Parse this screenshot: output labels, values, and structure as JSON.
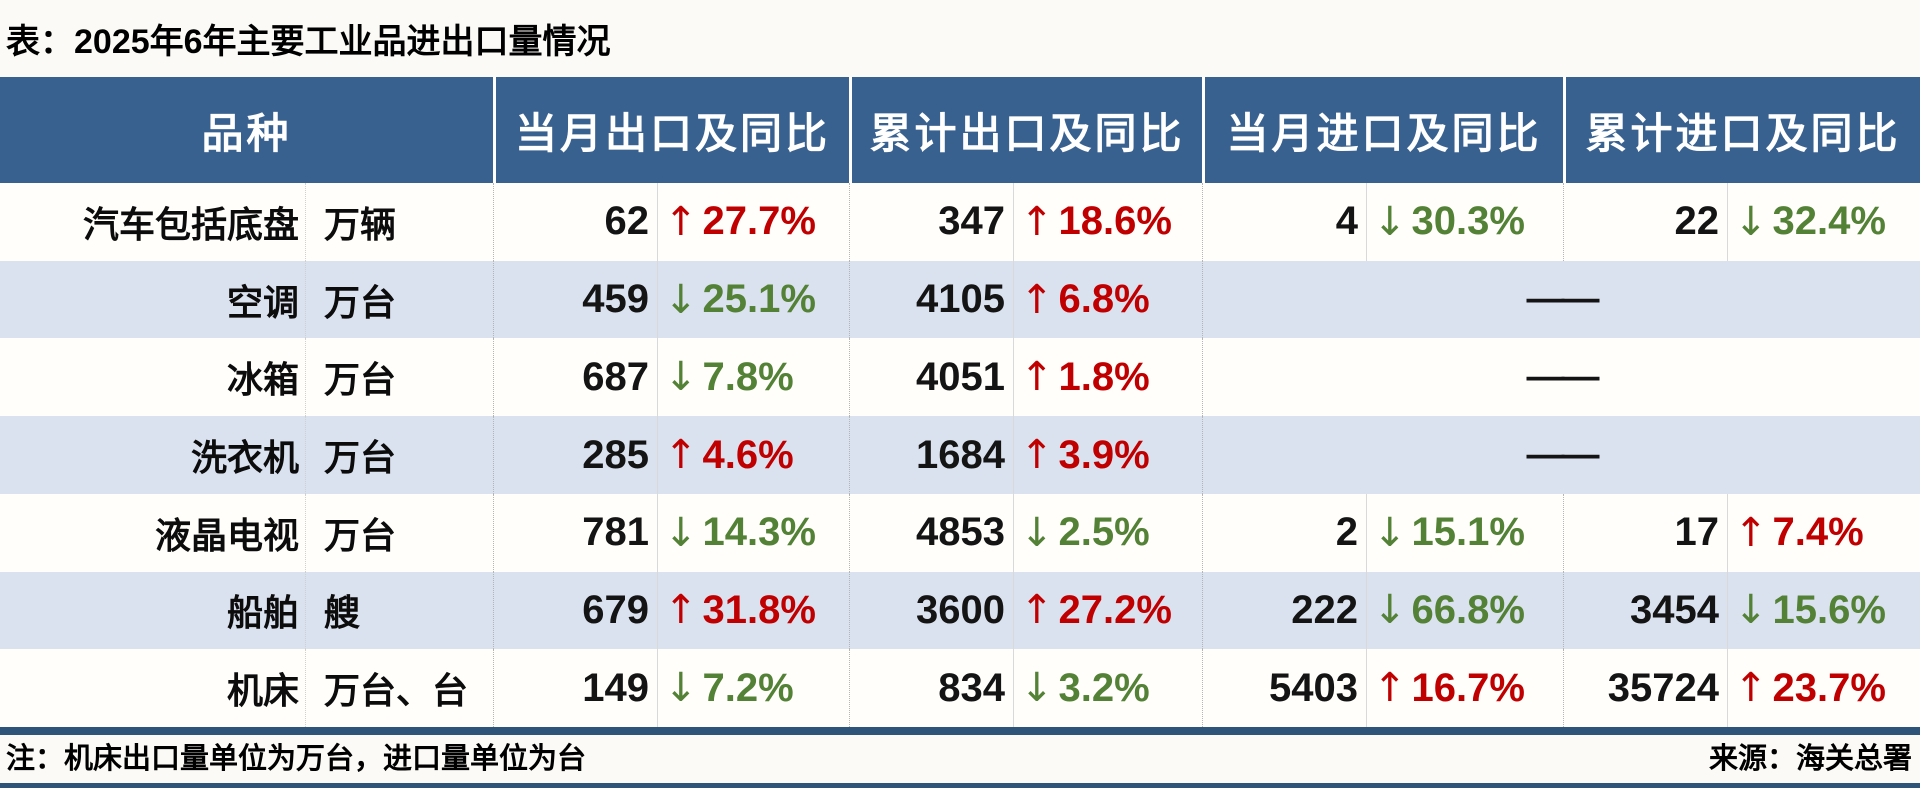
{
  "title": "表：2025年6年主要工业品进出口量情况",
  "colors": {
    "header_bg": "#38618f",
    "stripe_row_bg": "#dbe2ef",
    "up_red": "#c00000",
    "down_green": "#538135",
    "rule_navy": "#2e5579"
  },
  "table": {
    "headers": [
      "品种",
      "当月出口及同比",
      "累计出口及同比",
      "当月进口及同比",
      "累计进口及同比"
    ],
    "empty_placeholder": "——",
    "rows": [
      {
        "name": "汽车包括底盘",
        "unit": "万辆",
        "cells": [
          {
            "value": "62",
            "arrow": "↑",
            "dir": "up",
            "pct": "27.7%"
          },
          {
            "value": "347",
            "arrow": "↑",
            "dir": "up",
            "pct": "18.6%"
          },
          {
            "value": "4",
            "arrow": "↓",
            "dir": "down",
            "pct": "30.3%"
          },
          {
            "value": "22",
            "arrow": "↓",
            "dir": "down",
            "pct": "32.4%"
          }
        ]
      },
      {
        "name": "空调",
        "unit": "万台",
        "cells": [
          {
            "value": "459",
            "arrow": "↓",
            "dir": "down",
            "pct": "25.1%"
          },
          {
            "value": "4105",
            "arrow": "↑",
            "dir": "up",
            "pct": "6.8%"
          }
        ]
      },
      {
        "name": "冰箱",
        "unit": "万台",
        "cells": [
          {
            "value": "687",
            "arrow": "↓",
            "dir": "down",
            "pct": "7.8%"
          },
          {
            "value": "4051",
            "arrow": "↑",
            "dir": "up",
            "pct": "1.8%"
          }
        ]
      },
      {
        "name": "洗衣机",
        "unit": "万台",
        "cells": [
          {
            "value": "285",
            "arrow": "↑",
            "dir": "up",
            "pct": "4.6%"
          },
          {
            "value": "1684",
            "arrow": "↑",
            "dir": "up",
            "pct": "3.9%"
          }
        ]
      },
      {
        "name": "液晶电视",
        "unit": "万台",
        "cells": [
          {
            "value": "781",
            "arrow": "↓",
            "dir": "down",
            "pct": "14.3%"
          },
          {
            "value": "4853",
            "arrow": "↓",
            "dir": "down",
            "pct": "2.5%"
          },
          {
            "value": "2",
            "arrow": "↓",
            "dir": "down",
            "pct": "15.1%"
          },
          {
            "value": "17",
            "arrow": "↑",
            "dir": "up",
            "pct": "7.4%"
          }
        ]
      },
      {
        "name": "船舶",
        "unit": "艘",
        "cells": [
          {
            "value": "679",
            "arrow": "↑",
            "dir": "up",
            "pct": "31.8%"
          },
          {
            "value": "3600",
            "arrow": "↑",
            "dir": "up",
            "pct": "27.2%"
          },
          {
            "value": "222",
            "arrow": "↓",
            "dir": "down",
            "pct": "66.8%"
          },
          {
            "value": "3454",
            "arrow": "↓",
            "dir": "down",
            "pct": "15.6%"
          }
        ]
      },
      {
        "name": "机床",
        "unit": "万台、台",
        "cells": [
          {
            "value": "149",
            "arrow": "↓",
            "dir": "down",
            "pct": "7.2%"
          },
          {
            "value": "834",
            "arrow": "↓",
            "dir": "down",
            "pct": "3.2%"
          },
          {
            "value": "5403",
            "arrow": "↑",
            "dir": "up",
            "pct": "16.7%"
          },
          {
            "value": "35724",
            "arrow": "↑",
            "dir": "up",
            "pct": "23.7%"
          }
        ]
      }
    ]
  },
  "footer": {
    "note": "注：机床出口量单位为万台，进口量单位为台",
    "source": "来源：海关总署"
  }
}
